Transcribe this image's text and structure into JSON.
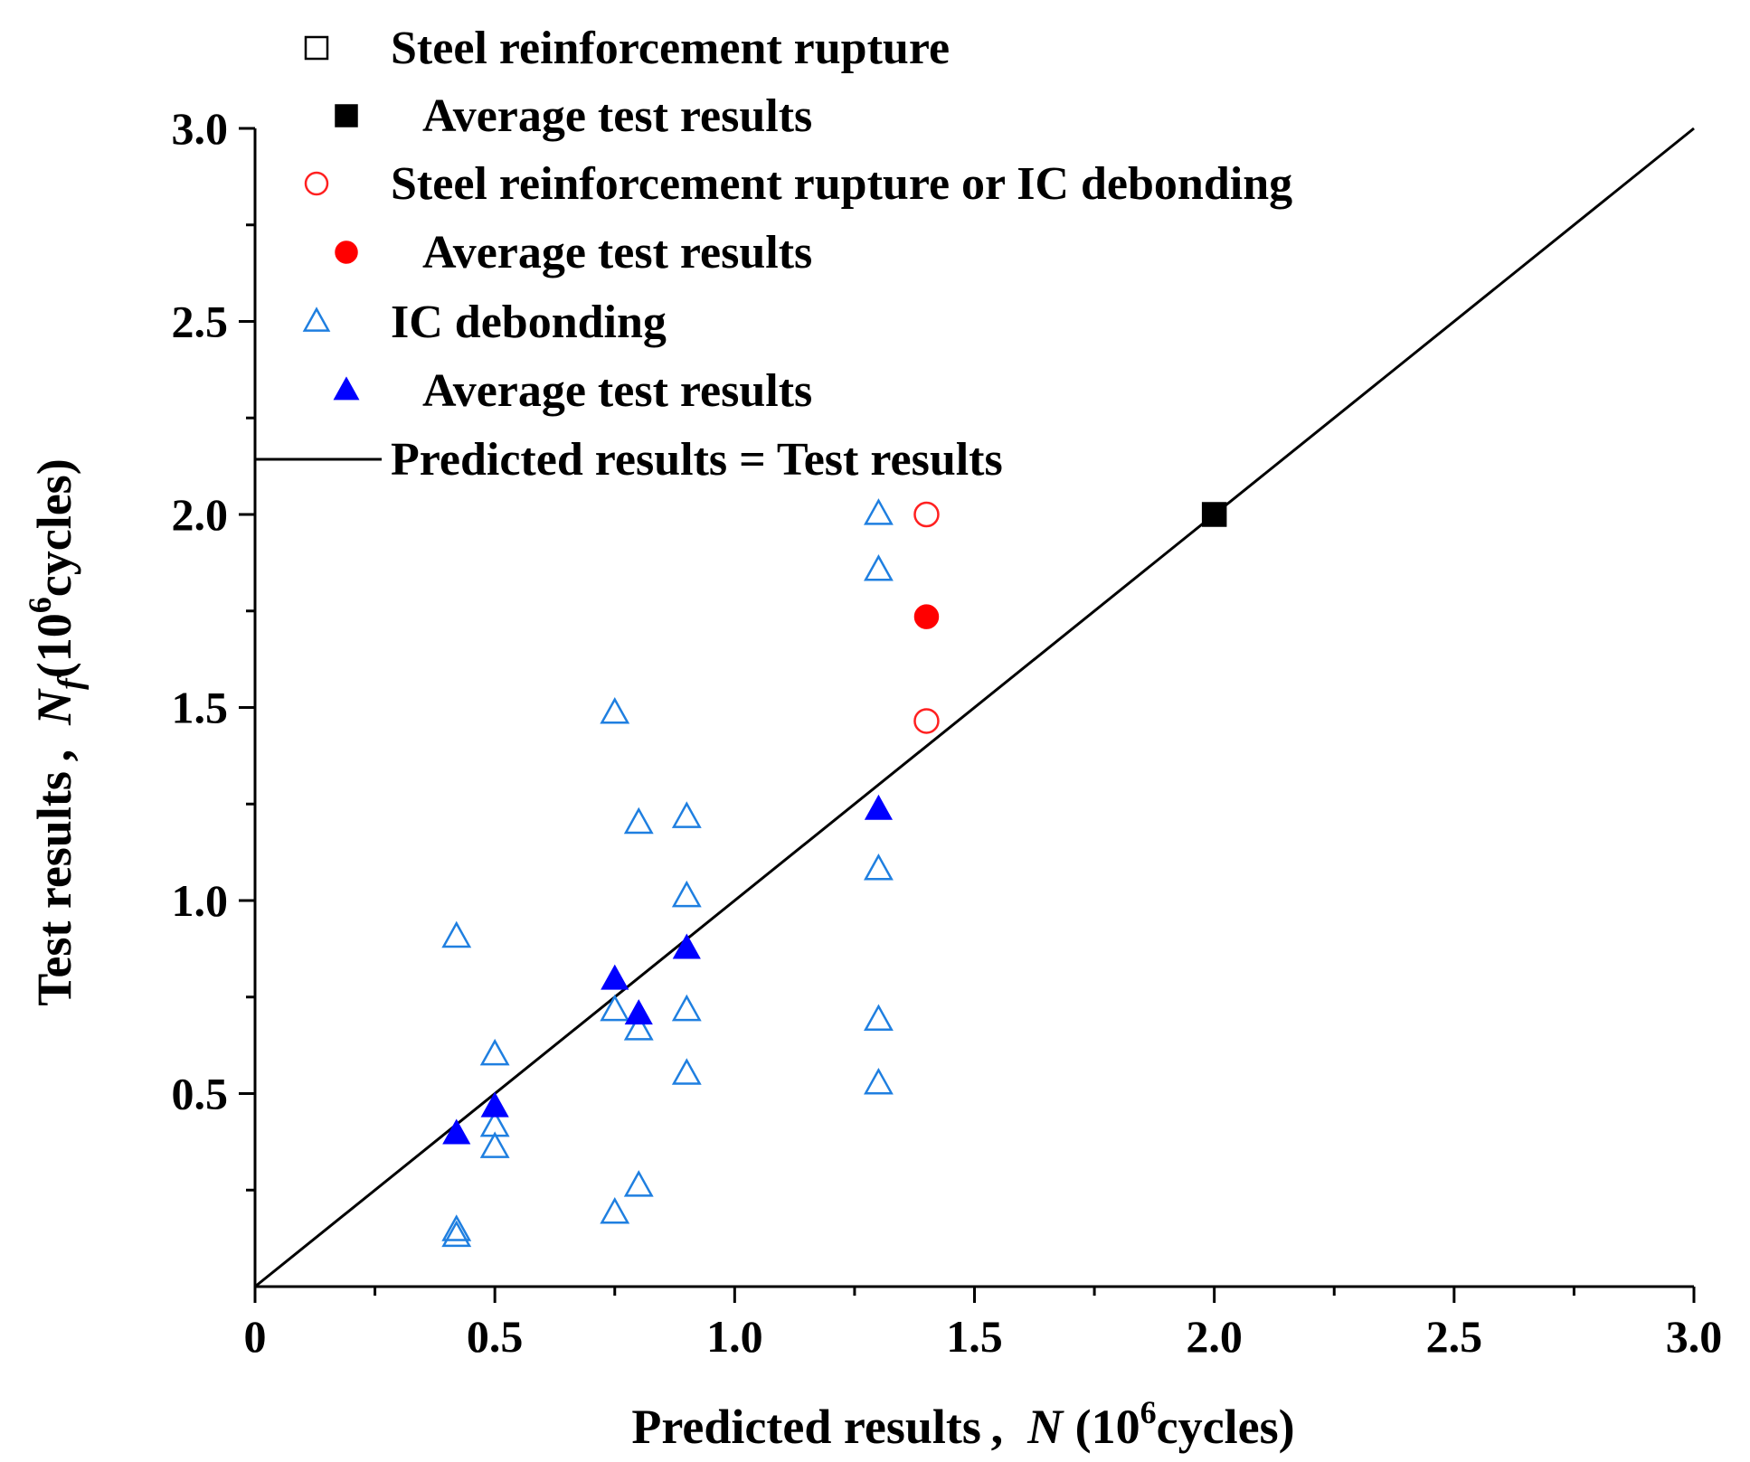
{
  "chart_data": {
    "type": "scatter",
    "xlabel": {
      "prefix": "Predicted results , ",
      "var": "N",
      "unit_open": " (10",
      "unit_sup": "6",
      "unit_close": "cycles)"
    },
    "ylabel": {
      "prefix": "Test results , ",
      "var": "N",
      "sub": "f",
      "unit_open": "(10",
      "unit_sup": "6",
      "unit_close": "cycles)"
    },
    "xlim": [
      0,
      3.0
    ],
    "ylim": [
      0,
      3.0
    ],
    "x_ticks": [
      {
        "value": 0,
        "label": "0"
      },
      {
        "value": 0.5,
        "label": "0.5"
      },
      {
        "value": 1.0,
        "label": "1.0"
      },
      {
        "value": 1.5,
        "label": "1.5"
      },
      {
        "value": 2.0,
        "label": "2.0"
      },
      {
        "value": 2.5,
        "label": "2.5"
      },
      {
        "value": 3.0,
        "label": "3.0"
      }
    ],
    "y_ticks": [
      {
        "value": 0.5,
        "label": "0.5"
      },
      {
        "value": 1.0,
        "label": "1.0"
      },
      {
        "value": 1.5,
        "label": "1.5"
      },
      {
        "value": 2.0,
        "label": "2.0"
      },
      {
        "value": 2.5,
        "label": "2.5"
      },
      {
        "value": 3.0,
        "label": "3.0"
      }
    ],
    "minor_step": 0.25,
    "series": [
      {
        "name": "Steel reinforcement rupture",
        "marker": "square",
        "filled": false,
        "color": "#000000",
        "points": []
      },
      {
        "name": "Average test results",
        "marker": "square",
        "filled": true,
        "color": "#000000",
        "points": [
          [
            2.0,
            2.0
          ]
        ]
      },
      {
        "name": "Steel reinforcement rupture or IC debonding",
        "marker": "circle",
        "filled": false,
        "color": "#ff2020",
        "points": [
          [
            1.4,
            2.0
          ],
          [
            1.4,
            1.465
          ]
        ]
      },
      {
        "name": "Average test results",
        "marker": "circle",
        "filled": true,
        "color": "#ff0000",
        "points": [
          [
            1.4,
            1.735
          ]
        ]
      },
      {
        "name": "IC debonding",
        "marker": "triangle",
        "filled": false,
        "color": "#1f7fe0",
        "points": [
          [
            1.3,
            2.0
          ],
          [
            1.3,
            1.855
          ],
          [
            1.3,
            1.08
          ],
          [
            1.3,
            0.69
          ],
          [
            1.3,
            0.525
          ],
          [
            0.75,
            1.485
          ],
          [
            0.75,
            0.715
          ],
          [
            0.75,
            0.19
          ],
          [
            0.8,
            1.2
          ],
          [
            0.8,
            0.665
          ],
          [
            0.8,
            0.26
          ],
          [
            0.9,
            1.215
          ],
          [
            0.9,
            1.01
          ],
          [
            0.9,
            0.715
          ],
          [
            0.9,
            0.55
          ],
          [
            0.42,
            0.905
          ],
          [
            0.42,
            0.145
          ],
          [
            0.42,
            0.13
          ],
          [
            0.5,
            0.6
          ],
          [
            0.5,
            0.415
          ],
          [
            0.5,
            0.36
          ]
        ]
      },
      {
        "name": "Average test results",
        "marker": "triangle",
        "filled": true,
        "color": "#0000ff",
        "points": [
          [
            0.42,
            0.395
          ],
          [
            0.5,
            0.465
          ],
          [
            0.75,
            0.795
          ],
          [
            0.8,
            0.705
          ],
          [
            0.9,
            0.875
          ],
          [
            1.3,
            1.235
          ]
        ]
      },
      {
        "name": "Predicted results = Test results",
        "marker": "line",
        "color": "#000000",
        "line": [
          [
            0,
            0
          ],
          [
            3.0,
            3.0
          ]
        ]
      }
    ],
    "legend_position": "top-left"
  }
}
